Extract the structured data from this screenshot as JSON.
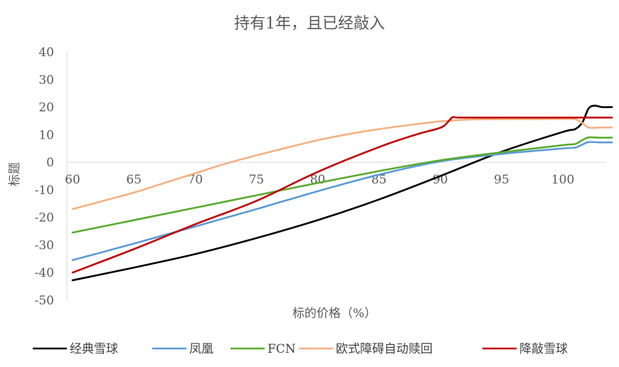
{
  "chart_data": {
    "type": "line",
    "title": "持有1年，且已经敲入",
    "xlabel": "标的价格（%）",
    "ylabel": "标题",
    "xlim": [
      60,
      104
    ],
    "ylim": [
      -50,
      40
    ],
    "x_ticks": [
      60,
      65,
      70,
      75,
      80,
      85,
      90,
      95,
      100
    ],
    "y_ticks": [
      -50,
      -40,
      -30,
      -20,
      -10,
      0,
      10,
      20,
      30,
      40
    ],
    "grid": false,
    "legend_position": "bottom",
    "series": [
      {
        "name": "经典雪球",
        "color": "#000000",
        "points": [
          [
            60,
            -42.8
          ],
          [
            65,
            -38.2
          ],
          [
            70,
            -33.3
          ],
          [
            75,
            -27.5
          ],
          [
            80,
            -21
          ],
          [
            85,
            -13.5
          ],
          [
            90,
            -5
          ],
          [
            95,
            3.8
          ],
          [
            100,
            11
          ],
          [
            101,
            12
          ],
          [
            101.6,
            14.5
          ],
          [
            102.1,
            19.5
          ],
          [
            102.6,
            20.5
          ],
          [
            103.2,
            20
          ],
          [
            104,
            20
          ]
        ]
      },
      {
        "name": "凤凰",
        "color": "#5b9bd5",
        "points": [
          [
            60,
            -35.5
          ],
          [
            65,
            -29.5
          ],
          [
            70,
            -23.3
          ],
          [
            75,
            -17
          ],
          [
            80,
            -10.5
          ],
          [
            85,
            -4.5
          ],
          [
            90,
            0.3
          ],
          [
            95,
            3
          ],
          [
            100,
            5
          ],
          [
            101,
            5.3
          ],
          [
            101.5,
            6.2
          ],
          [
            102.1,
            7.3
          ],
          [
            103,
            7.2
          ],
          [
            104,
            7.2
          ]
        ]
      },
      {
        "name": "FCN",
        "color": "#5aab2f",
        "points": [
          [
            60,
            -25.5
          ],
          [
            65,
            -21
          ],
          [
            70,
            -16.5
          ],
          [
            75,
            -12
          ],
          [
            80,
            -7.5
          ],
          [
            85,
            -3.2
          ],
          [
            90,
            0.7
          ],
          [
            95,
            3.6
          ],
          [
            100,
            6.2
          ],
          [
            101,
            6.6
          ],
          [
            101.5,
            7.8
          ],
          [
            102.1,
            9
          ],
          [
            103,
            8.9
          ],
          [
            104,
            8.9
          ]
        ]
      },
      {
        "name": "欧式障碍自动赎回",
        "color": "#f4b183",
        "points": [
          [
            60,
            -17
          ],
          [
            62.5,
            -14
          ],
          [
            65,
            -11
          ],
          [
            67.5,
            -7.5
          ],
          [
            70,
            -4
          ],
          [
            72.5,
            -0.5
          ],
          [
            75,
            2.5
          ],
          [
            77.5,
            5.3
          ],
          [
            80,
            8
          ],
          [
            82.5,
            10.2
          ],
          [
            85,
            12
          ],
          [
            87.5,
            13.5
          ],
          [
            90,
            14.8
          ],
          [
            92.5,
            15.5
          ],
          [
            95,
            15.6
          ],
          [
            100,
            15.7
          ],
          [
            101,
            15.6
          ],
          [
            101.5,
            14.5
          ],
          [
            102.1,
            12.6
          ],
          [
            103,
            12.6
          ],
          [
            104,
            12.6
          ]
        ]
      },
      {
        "name": "降敲雪球",
        "color": "#c00000",
        "points": [
          [
            60,
            -40
          ],
          [
            65,
            -31.5
          ],
          [
            70,
            -22.5
          ],
          [
            75,
            -14
          ],
          [
            80,
            -3.5
          ],
          [
            85,
            5.5
          ],
          [
            88,
            10
          ],
          [
            90,
            12.5
          ],
          [
            90.6,
            14.5
          ],
          [
            91,
            16.3
          ],
          [
            91.6,
            16.2
          ],
          [
            95,
            16.2
          ],
          [
            100,
            16.2
          ],
          [
            104,
            16.2
          ]
        ]
      }
    ]
  }
}
